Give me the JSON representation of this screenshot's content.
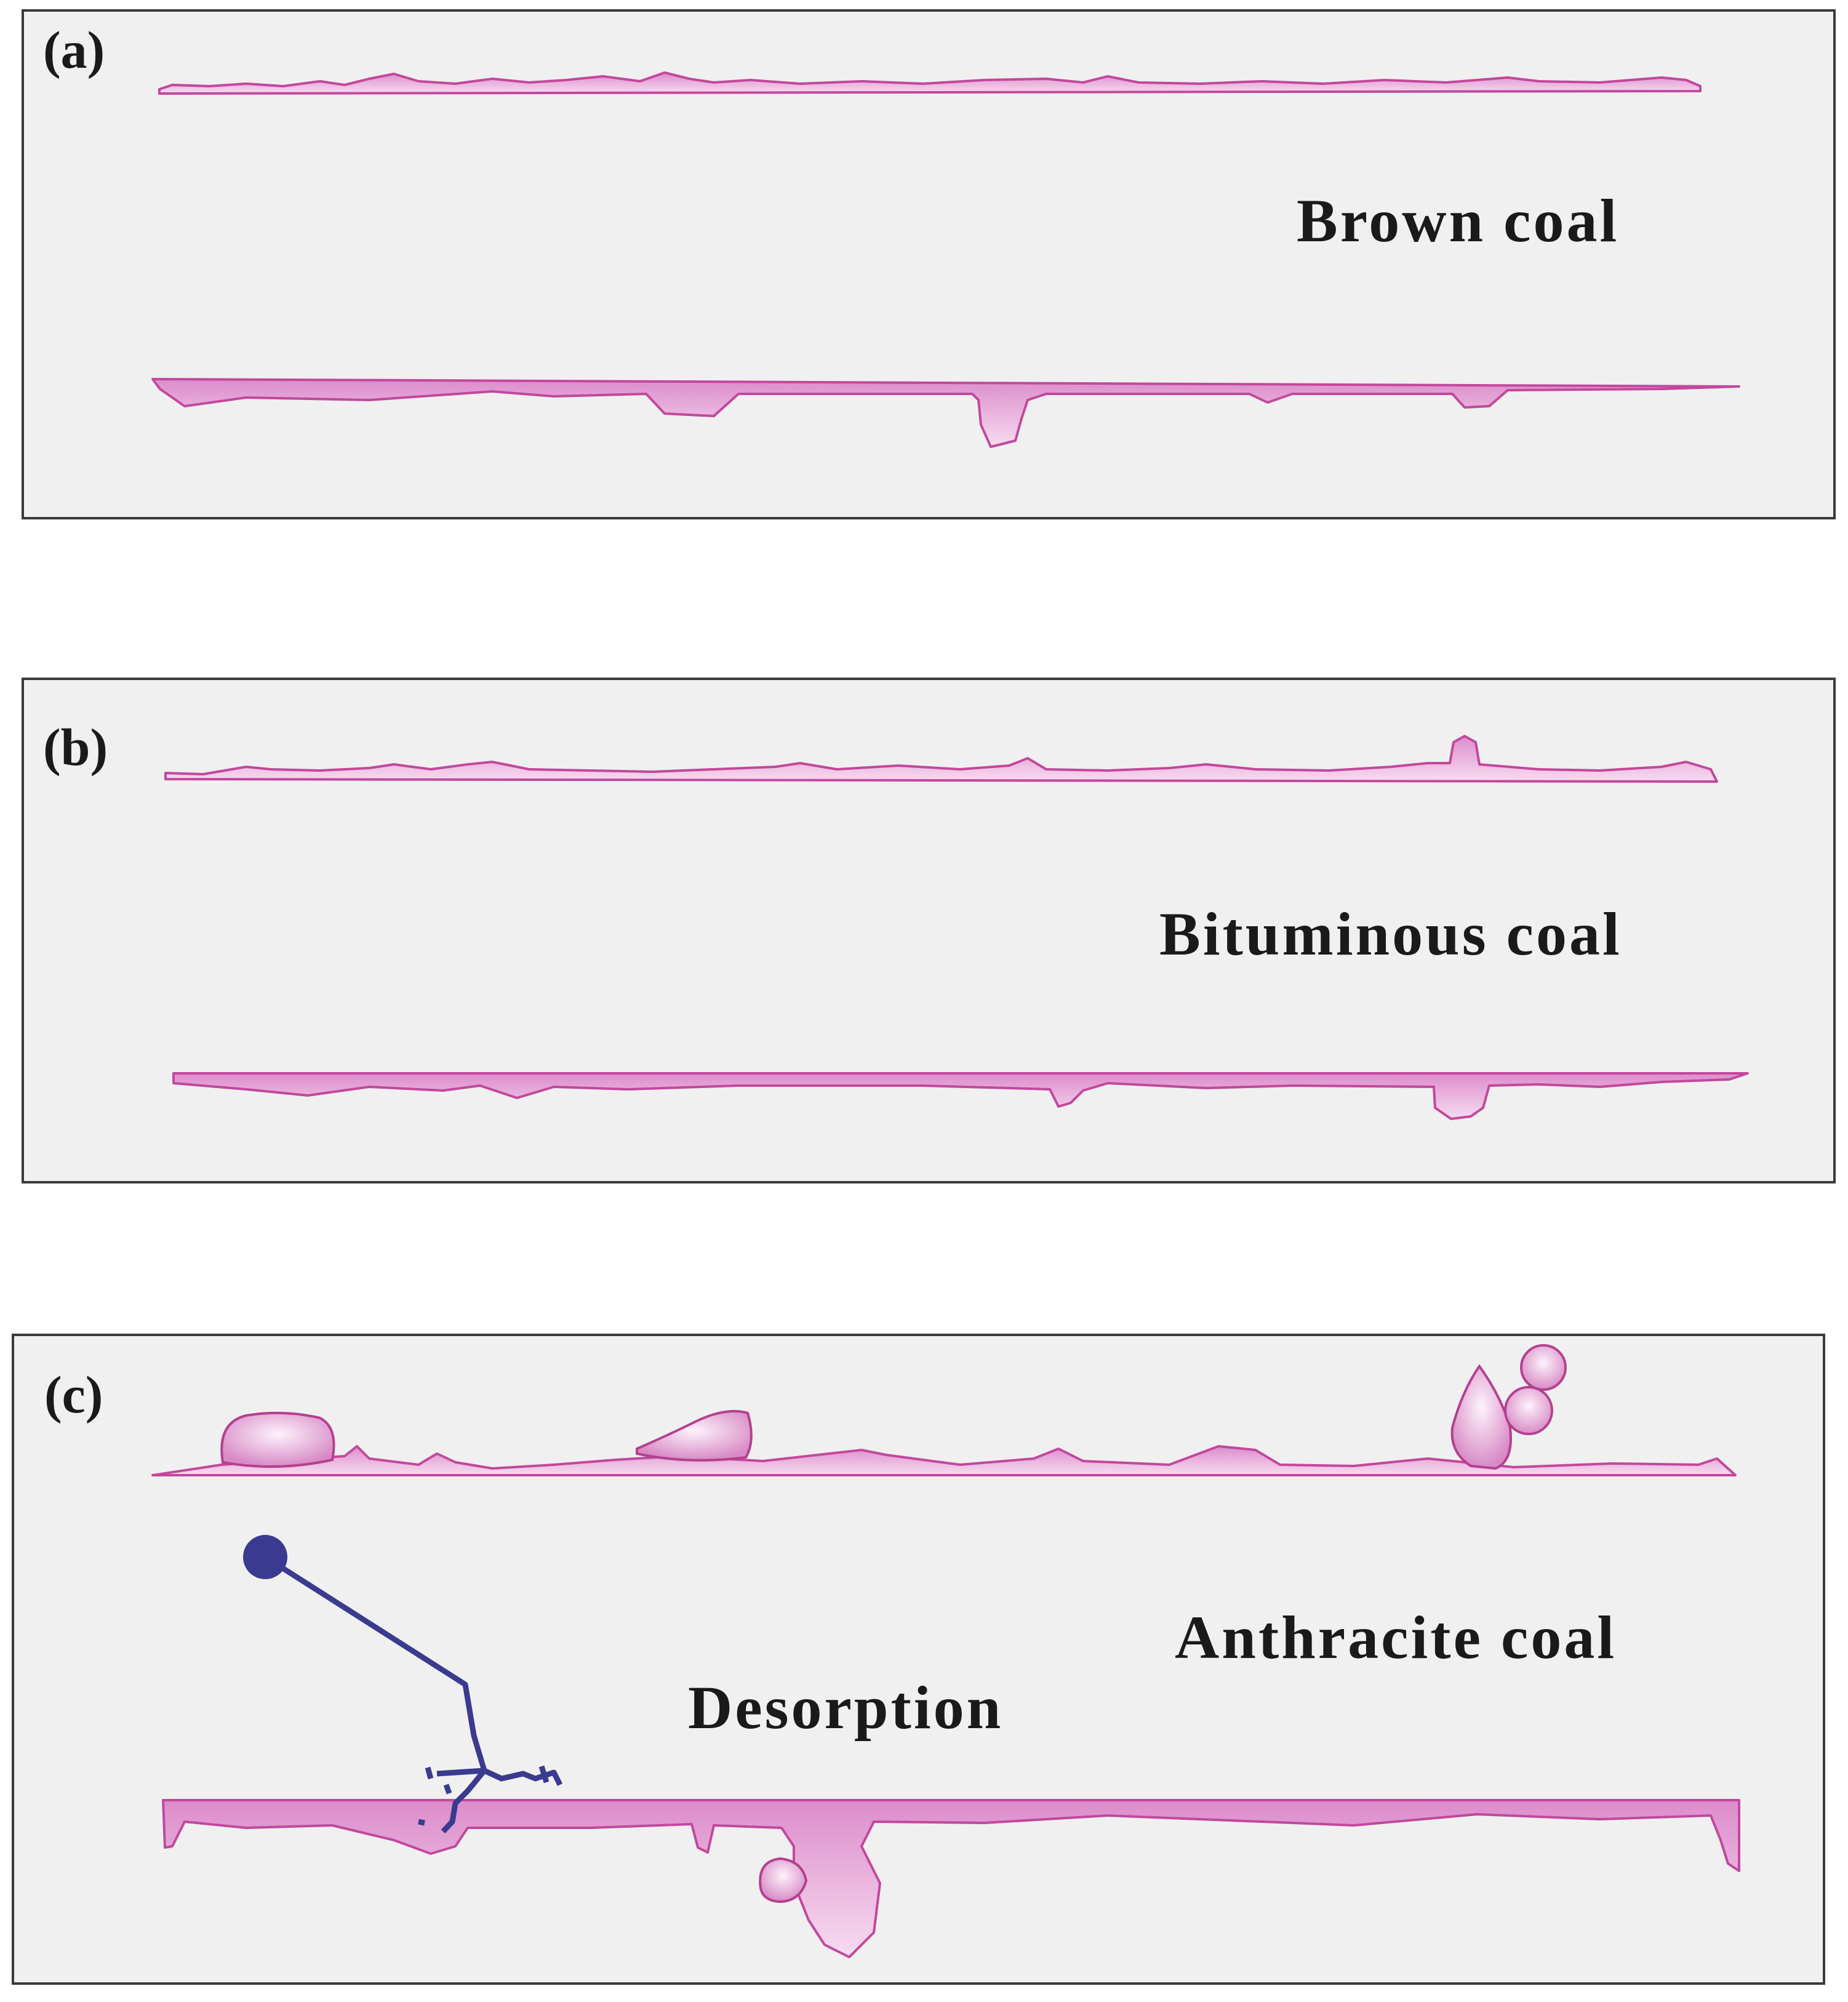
{
  "panels": [
    {
      "label": "(a)",
      "caption": "Brown coal"
    },
    {
      "label": "(b)",
      "caption": "Bituminous coal"
    },
    {
      "label": "(c)",
      "caption": "Anthracite coal",
      "annotation": "Desorption"
    }
  ]
}
